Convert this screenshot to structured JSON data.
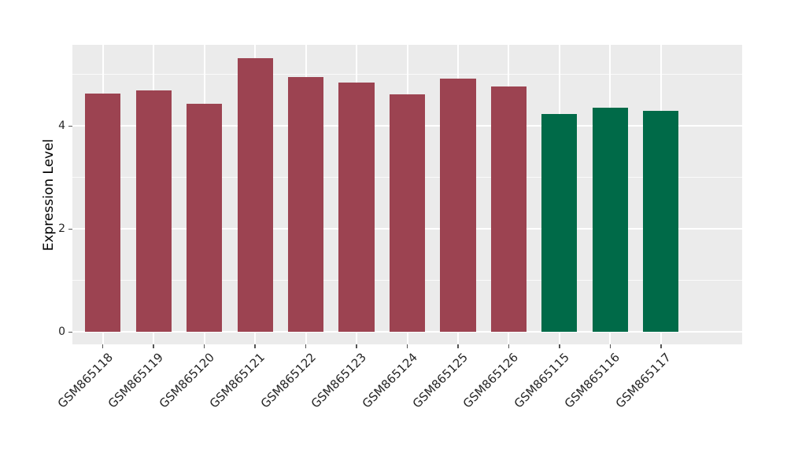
{
  "chart_data": {
    "type": "bar",
    "title": "",
    "xlabel": "",
    "ylabel": "Expression Level",
    "categories": [
      "GSM865118",
      "GSM865119",
      "GSM865120",
      "GSM865121",
      "GSM865122",
      "GSM865123",
      "GSM865124",
      "GSM865125",
      "GSM865126",
      "GSM865115",
      "GSM865116",
      "GSM865117"
    ],
    "values": [
      4.64,
      4.7,
      4.44,
      5.32,
      4.95,
      4.85,
      4.62,
      4.92,
      4.77,
      4.23,
      4.36,
      4.29
    ],
    "bar_colors": [
      "#9C4351",
      "#9C4351",
      "#9C4351",
      "#9C4351",
      "#9C4351",
      "#9C4351",
      "#9C4351",
      "#9C4351",
      "#9C4351",
      "#006A48",
      "#006A48",
      "#006A48"
    ],
    "group_palette": {
      "red_group": "#9C4351",
      "green_group": "#006A48"
    },
    "yticks": [
      0,
      2,
      4
    ],
    "minor_yticks": [
      1,
      3,
      5
    ],
    "ylim": [
      -0.24,
      5.58
    ],
    "bar_width_frac": 0.7,
    "grid": true,
    "legend": false,
    "style": {
      "panel_bg": "#EBEBEB",
      "grid_color": "#FFFFFF",
      "tick_mark_color": "#555555",
      "tick_label_color": "#262626",
      "figure_bg": "#FFFFFF"
    }
  }
}
